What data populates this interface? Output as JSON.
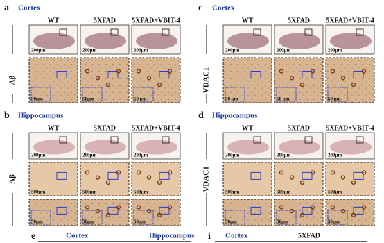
{
  "panels": [
    {
      "letter": "a",
      "region": "Cortex",
      "columns": [
        "WT",
        "5XFAD",
        "5XFAD+VBIT-4"
      ],
      "stain": "Aβ",
      "scales": [
        [
          "200μm",
          "200μm",
          "200μm"
        ],
        [
          "50μm",
          "50μm",
          "50 μm"
        ]
      ]
    },
    {
      "letter": "b",
      "region": "Hippocampus",
      "columns": [
        "WT",
        "5XFAD",
        "5XFAD+VBIT-4"
      ],
      "stain": "Aβ",
      "scales": [
        [
          "200μm",
          "200μm",
          "200μm"
        ],
        [
          "500μm",
          "500μm",
          "500μm"
        ],
        [
          "50μm",
          "50μm",
          "50μm"
        ]
      ]
    },
    {
      "letter": "c",
      "region": "Cortex",
      "columns": [
        "WT",
        "5XFAD",
        "5XFAD+VBIT-4"
      ],
      "stain": "VDAC1",
      "scales": [
        [
          "200μm",
          "200μm",
          "200μm"
        ],
        [
          "50 μm",
          "50 μm",
          "50 μm"
        ]
      ]
    },
    {
      "letter": "d",
      "region": "Hippocampus",
      "columns": [
        "WT",
        "5XFAD",
        "5XFAD+VBIT-4"
      ],
      "stain": "VDAC1",
      "scales": [
        [
          "200μm",
          "200μm",
          "200μm"
        ],
        [
          "500μm",
          "500μm",
          "500μm"
        ],
        [
          "50μm",
          "50μm",
          "50μm"
        ]
      ]
    }
  ],
  "bottom": [
    {
      "letter": "e",
      "labels": [
        "Cortex",
        "Hippocampus"
      ]
    },
    {
      "letter": "i",
      "labels": [
        "Cortex",
        "5XFAD"
      ]
    }
  ]
}
